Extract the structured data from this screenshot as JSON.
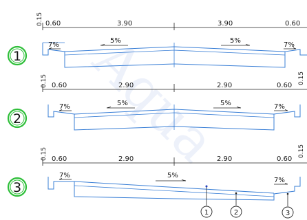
{
  "sections": [
    {
      "number": "1",
      "top_dim": "0.15",
      "right_dim": "",
      "dims": [
        "0.60",
        "3.90",
        "3.90",
        "0.60"
      ],
      "slopes": {
        "left_outer": "7%",
        "left_inner": "5%",
        "right_inner": "5%",
        "right_outer": "7%"
      }
    },
    {
      "number": "2",
      "top_dim": "0.15",
      "right_dim": "0.15",
      "dims": [
        "0.60",
        "2.90",
        "2.90",
        "0.60"
      ],
      "slopes": {
        "left_outer": "7%",
        "left_inner": "5%",
        "right_inner": "5%",
        "right_outer": "7%"
      }
    },
    {
      "number": "3",
      "top_dim": "0.15",
      "right_dim": "0.15",
      "dims": [
        "0.60",
        "2.90",
        "2.90",
        "0.60"
      ],
      "slopes": {
        "left_outer": "7%",
        "center": "5%",
        "right_outer": "7%"
      }
    }
  ],
  "callouts": [
    "1",
    "2",
    "3"
  ],
  "colors": {
    "deck": "#3a7fd6",
    "circle": "#2fbf3a"
  }
}
